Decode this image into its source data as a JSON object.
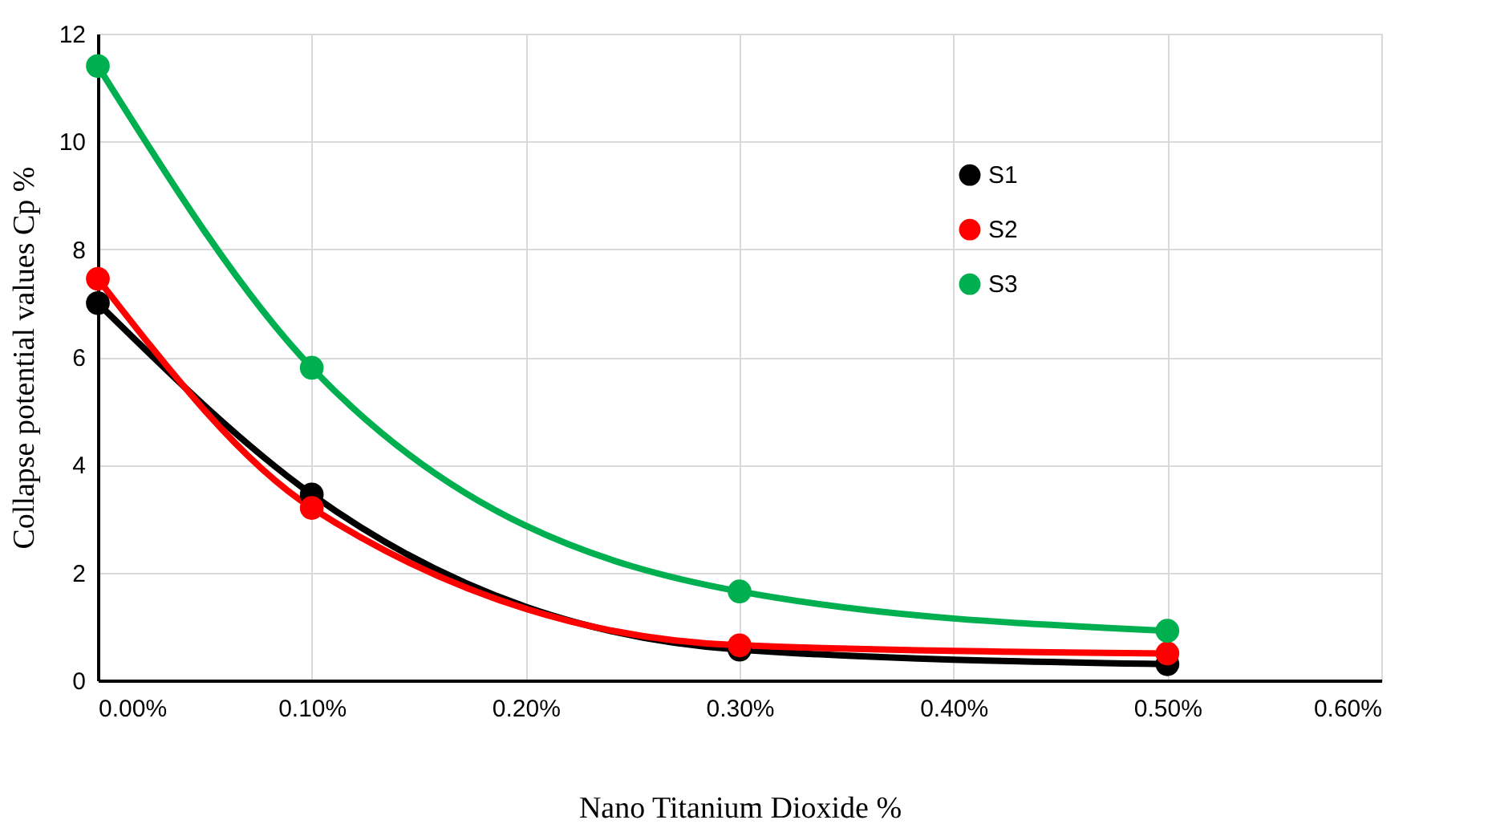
{
  "chart_data": {
    "type": "line",
    "xlabel": "Nano Titanium Dioxide %",
    "ylabel": "Collapse potential values Cp %",
    "x": [
      0,
      0.1,
      0.3,
      0.5
    ],
    "series": [
      {
        "name": "S1",
        "color": "#000000",
        "values": [
          7.0,
          3.45,
          0.57,
          0.3
        ]
      },
      {
        "name": "S2",
        "color": "#ff0000",
        "values": [
          7.45,
          3.2,
          0.65,
          0.5
        ]
      },
      {
        "name": "S3",
        "color": "#00b050",
        "values": [
          11.4,
          5.8,
          1.65,
          0.92
        ]
      }
    ],
    "xlim": [
      0,
      0.6
    ],
    "xticks": [
      {
        "value": 0,
        "label": "0.00%"
      },
      {
        "value": 0.1,
        "label": "0.10%"
      },
      {
        "value": 0.2,
        "label": "0.20%"
      },
      {
        "value": 0.3,
        "label": "0.30%"
      },
      {
        "value": 0.4,
        "label": "0.40%"
      },
      {
        "value": 0.5,
        "label": "0.50%"
      },
      {
        "value": 0.6,
        "label": "0.60%"
      }
    ],
    "ylim": [
      0,
      12
    ],
    "yticks": [
      0,
      2,
      4,
      6,
      8,
      10,
      12
    ],
    "grid": true,
    "legend": "right",
    "marker": "circle",
    "line_style": "solid"
  }
}
